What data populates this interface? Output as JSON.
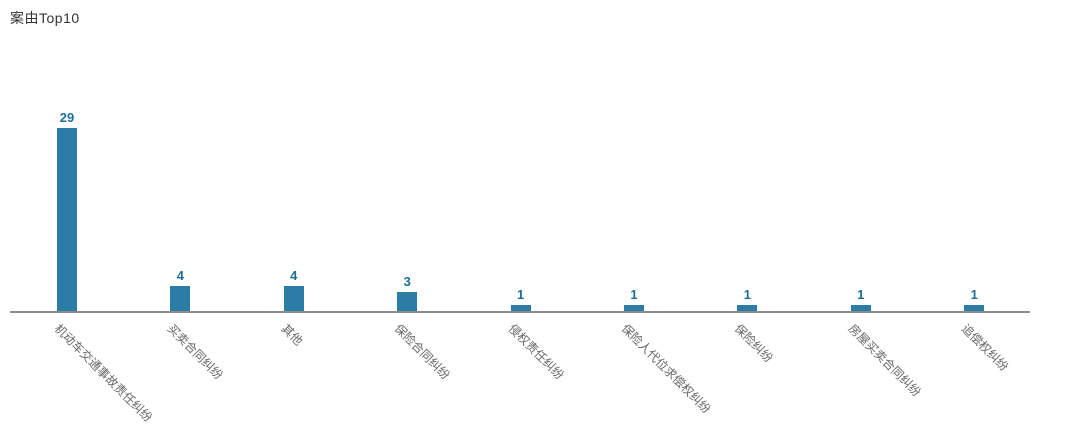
{
  "header": {
    "title": "案由Top10"
  },
  "colors": {
    "bar": "#2b7da5",
    "value_label": "#1d6e94",
    "category_label": "#666666",
    "axis_line": "#8c8c8c",
    "title": "#333333",
    "background": "#ffffff"
  },
  "chart_data": {
    "type": "bar",
    "title": "案由Top10",
    "categories": [
      "机动车交通事故责任纠纷",
      "买卖合同纠纷",
      "其他",
      "保险合同纠纷",
      "侵权责任纠纷",
      "保险人代位求偿权纠纷",
      "保险纠纷",
      "房屋买卖合同纠纷",
      "追偿权纠纷"
    ],
    "values": [
      29,
      4,
      4,
      3,
      1,
      1,
      1,
      1,
      1
    ],
    "xlabel": "",
    "ylabel": "",
    "ylim": [
      0,
      29
    ],
    "grid": false,
    "legend_shown": false,
    "value_labels_shown": true,
    "category_label_rotation_deg": 45,
    "bar_color": "#2b7da5"
  }
}
